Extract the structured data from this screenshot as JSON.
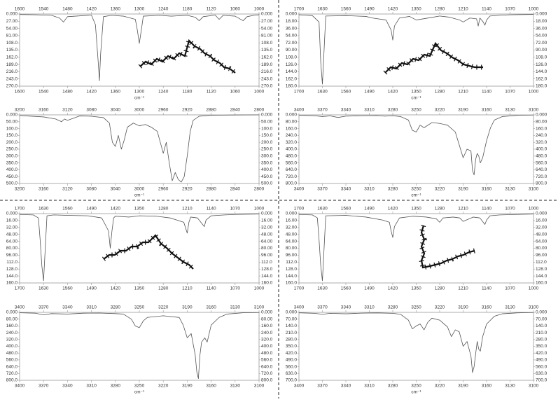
{
  "chart_data": [
    {
      "type": "line",
      "x_label": "cm⁻¹",
      "xlim": [
        1600,
        1000
      ],
      "xticks": [
        1600,
        1540,
        1480,
        1420,
        1360,
        1300,
        1240,
        1180,
        1120,
        1060,
        1000
      ],
      "ylim": [
        270,
        0
      ],
      "yticks": [
        {
          "value": 0,
          "label": "0.000"
        },
        {
          "value": 27,
          "label": "27.00"
        },
        {
          "value": 54,
          "label": "54.00"
        },
        {
          "value": 81,
          "label": "81.00"
        },
        {
          "value": 108,
          "label": "108.0"
        },
        {
          "value": 135,
          "label": "135.0"
        },
        {
          "value": 162,
          "label": "162.0"
        },
        {
          "value": 189,
          "label": "189.0"
        },
        {
          "value": 216,
          "label": "216.0"
        },
        {
          "value": 243,
          "label": "243.0"
        },
        {
          "value": 270,
          "label": "270.0"
        }
      ],
      "color": "#555555",
      "x": [
        1600,
        1560,
        1520,
        1500,
        1490,
        1480,
        1420,
        1410,
        1403,
        1400,
        1397,
        1390,
        1370,
        1340,
        1310,
        1305,
        1300,
        1295,
        1290,
        1250,
        1220,
        1180,
        1160,
        1150,
        1140,
        1110,
        1100,
        1090,
        1060,
        1040,
        1030,
        1010,
        1000
      ],
      "values": [
        2,
        3,
        5,
        15,
        30,
        10,
        4,
        40,
        180,
        250,
        150,
        10,
        5,
        8,
        20,
        60,
        110,
        60,
        8,
        5,
        8,
        5,
        12,
        25,
        10,
        4,
        20,
        5,
        8,
        25,
        10,
        4,
        3
      ]
    },
    {
      "type": "line",
      "x_label": "cm⁻¹",
      "xlim": [
        3200,
        2800
      ],
      "xticks": [
        3200,
        3160,
        3120,
        3080,
        3040,
        3000,
        2960,
        2920,
        2880,
        2840,
        2800
      ],
      "ylim": [
        500,
        0
      ],
      "yticks": [
        {
          "value": 0,
          "label": "0.000"
        },
        {
          "value": 50,
          "label": "50.00"
        },
        {
          "value": 100,
          "label": "100.0"
        },
        {
          "value": 150,
          "label": "150.0"
        },
        {
          "value": 200,
          "label": "200.0"
        },
        {
          "value": 250,
          "label": "250.0"
        },
        {
          "value": 300,
          "label": "300.0"
        },
        {
          "value": 350,
          "label": "350.0"
        },
        {
          "value": 400,
          "label": "400.0"
        },
        {
          "value": 450,
          "label": "450.0"
        },
        {
          "value": 500,
          "label": "500.0"
        }
      ],
      "color": "#555555",
      "x": [
        3200,
        3180,
        3160,
        3140,
        3130,
        3125,
        3120,
        3100,
        3080,
        3060,
        3050,
        3045,
        3040,
        3035,
        3030,
        3025,
        3020,
        3010,
        3000,
        2990,
        2980,
        2970,
        2965,
        2960,
        2955,
        2950,
        2945,
        2940,
        2935,
        2930,
        2925,
        2920,
        2915,
        2910,
        2900,
        2880,
        2860,
        2840,
        2800
      ],
      "values": [
        5,
        10,
        15,
        30,
        50,
        30,
        40,
        8,
        10,
        20,
        60,
        200,
        230,
        150,
        250,
        180,
        90,
        60,
        80,
        70,
        90,
        120,
        200,
        280,
        200,
        350,
        480,
        420,
        470,
        490,
        450,
        300,
        120,
        40,
        10,
        3,
        2,
        1,
        0
      ]
    },
    {
      "type": "line",
      "x_label": "cm⁻¹",
      "xlim": [
        1700,
        1000
      ],
      "xticks": [
        1700,
        1630,
        1560,
        1490,
        1420,
        1350,
        1280,
        1210,
        1140,
        1070,
        1000
      ],
      "ylim": [
        180,
        0
      ],
      "yticks": [
        {
          "value": 0,
          "label": "0.000"
        },
        {
          "value": 18,
          "label": "18.00"
        },
        {
          "value": 36,
          "label": "36.00"
        },
        {
          "value": 54,
          "label": "54.00"
        },
        {
          "value": 72,
          "label": "72.00"
        },
        {
          "value": 90,
          "label": "90.00"
        },
        {
          "value": 108,
          "label": "108.0"
        },
        {
          "value": 126,
          "label": "126.0"
        },
        {
          "value": 144,
          "label": "144.0"
        },
        {
          "value": 162,
          "label": "162.0"
        },
        {
          "value": 180,
          "label": "180.0"
        }
      ],
      "color": "#555555",
      "x": [
        1700,
        1660,
        1640,
        1635,
        1630,
        1625,
        1620,
        1560,
        1500,
        1480,
        1440,
        1425,
        1420,
        1415,
        1400,
        1370,
        1350,
        1300,
        1280,
        1250,
        1220,
        1210,
        1190,
        1170,
        1165,
        1160,
        1150,
        1145,
        1140,
        1130,
        1100,
        1070,
        1000
      ],
      "values": [
        2,
        4,
        20,
        120,
        175,
        90,
        5,
        4,
        6,
        10,
        15,
        40,
        65,
        30,
        10,
        6,
        15,
        8,
        5,
        8,
        15,
        20,
        10,
        12,
        30,
        10,
        20,
        28,
        15,
        5,
        3,
        2,
        1
      ]
    },
    {
      "type": "line",
      "x_label": "cm⁻¹",
      "xlim": [
        3400,
        3100
      ],
      "xticks": [
        3400,
        3370,
        3340,
        3310,
        3280,
        3250,
        3220,
        3190,
        3160,
        3130,
        3100
      ],
      "ylim": [
        800,
        0
      ],
      "yticks": [
        {
          "value": 0,
          "label": "0.000"
        },
        {
          "value": 80,
          "label": "80.00"
        },
        {
          "value": 160,
          "label": "160.0"
        },
        {
          "value": 240,
          "label": "240.0"
        },
        {
          "value": 320,
          "label": "320.0"
        },
        {
          "value": 400,
          "label": "400.0"
        },
        {
          "value": 480,
          "label": "480.0"
        },
        {
          "value": 560,
          "label": "560.0"
        },
        {
          "value": 640,
          "label": "640.0"
        },
        {
          "value": 720,
          "label": "720.0"
        },
        {
          "value": 800,
          "label": "800.0"
        }
      ],
      "color": "#555555",
      "x": [
        3400,
        3380,
        3370,
        3360,
        3350,
        3340,
        3320,
        3300,
        3290,
        3280,
        3270,
        3260,
        3255,
        3250,
        3245,
        3240,
        3230,
        3220,
        3210,
        3200,
        3195,
        3190,
        3185,
        3180,
        3178,
        3176,
        3174,
        3172,
        3170,
        3168,
        3165,
        3160,
        3155,
        3150,
        3140,
        3120,
        3100
      ],
      "values": [
        5,
        10,
        20,
        12,
        30,
        15,
        10,
        8,
        15,
        10,
        20,
        60,
        180,
        200,
        120,
        150,
        90,
        100,
        120,
        200,
        350,
        500,
        400,
        420,
        650,
        700,
        520,
        450,
        480,
        560,
        500,
        300,
        150,
        60,
        20,
        5,
        2
      ]
    },
    {
      "type": "line",
      "xlim": [
        1700,
        1000
      ],
      "xticks": [
        1700,
        1630,
        1560,
        1490,
        1420,
        1350,
        1280,
        1210,
        1140,
        1070,
        1000
      ],
      "ylim": [
        160,
        0
      ],
      "yticks": [
        {
          "value": 0,
          "label": "0.000"
        },
        {
          "value": 16,
          "label": "16.00"
        },
        {
          "value": 32,
          "label": "32.00"
        },
        {
          "value": 48,
          "label": "48.00"
        },
        {
          "value": 64,
          "label": "64.00"
        },
        {
          "value": 80,
          "label": "80.00"
        },
        {
          "value": 96,
          "label": "96.00"
        },
        {
          "value": 112,
          "label": "112.0"
        },
        {
          "value": 128,
          "label": "128.0"
        },
        {
          "value": 144,
          "label": "144.0"
        },
        {
          "value": 160,
          "label": "160.0"
        }
      ],
      "color": "#555555",
      "x": [
        1700,
        1660,
        1645,
        1640,
        1635,
        1630,
        1625,
        1620,
        1600,
        1560,
        1500,
        1460,
        1440,
        1435,
        1430,
        1425,
        1420,
        1380,
        1350,
        1300,
        1260,
        1240,
        1220,
        1210,
        1205,
        1200,
        1180,
        1165,
        1160,
        1155,
        1140,
        1100,
        1070,
        1000
      ],
      "values": [
        2,
        3,
        10,
        60,
        120,
        155,
        80,
        5,
        3,
        4,
        5,
        10,
        40,
        80,
        40,
        10,
        6,
        8,
        5,
        6,
        10,
        15,
        20,
        45,
        20,
        8,
        10,
        25,
        30,
        15,
        5,
        3,
        2,
        1
      ]
    },
    {
      "type": "line",
      "x_label": "cm⁻¹",
      "xlim": [
        3400,
        3100
      ],
      "xticks": [
        3400,
        3370,
        3340,
        3310,
        3280,
        3250,
        3220,
        3190,
        3160,
        3130,
        3100
      ],
      "ylim": [
        800,
        0
      ],
      "yticks": [
        {
          "value": 0,
          "label": "0.000"
        },
        {
          "value": 80,
          "label": "80.00"
        },
        {
          "value": 160,
          "label": "160.0"
        },
        {
          "value": 240,
          "label": "240.0"
        },
        {
          "value": 320,
          "label": "320.0"
        },
        {
          "value": 400,
          "label": "400.0"
        },
        {
          "value": 480,
          "label": "480.0"
        },
        {
          "value": 560,
          "label": "560.0"
        },
        {
          "value": 640,
          "label": "640.0"
        },
        {
          "value": 720,
          "label": "720.0"
        },
        {
          "value": 800,
          "label": "800.0"
        }
      ],
      "color": "#555555",
      "x": [
        3400,
        3380,
        3370,
        3360,
        3340,
        3320,
        3300,
        3280,
        3270,
        3260,
        3255,
        3250,
        3245,
        3240,
        3220,
        3200,
        3195,
        3190,
        3185,
        3180,
        3178,
        3176,
        3174,
        3172,
        3168,
        3165,
        3160,
        3150,
        3140,
        3120,
        3100
      ],
      "values": [
        5,
        10,
        30,
        15,
        20,
        10,
        8,
        15,
        20,
        80,
        160,
        180,
        100,
        60,
        40,
        60,
        150,
        300,
        250,
        500,
        700,
        780,
        500,
        350,
        300,
        350,
        150,
        60,
        20,
        5,
        2
      ]
    },
    {
      "type": "line",
      "xlim": [
        1700,
        1000
      ],
      "xticks": [
        1700,
        1630,
        1560,
        1490,
        1420,
        1350,
        1280,
        1210,
        1140,
        1070,
        1000
      ],
      "ylim": [
        160,
        0
      ],
      "yticks": [
        {
          "value": 0,
          "label": "0.000"
        },
        {
          "value": 16,
          "label": "16.00"
        },
        {
          "value": 32,
          "label": "32.00"
        },
        {
          "value": 48,
          "label": "48.00"
        },
        {
          "value": 64,
          "label": "64.00"
        },
        {
          "value": 80,
          "label": "80.00"
        },
        {
          "value": 96,
          "label": "96.00"
        },
        {
          "value": 112,
          "label": "112.0"
        },
        {
          "value": 128,
          "label": "128.0"
        },
        {
          "value": 144,
          "label": "144.0"
        },
        {
          "value": 160,
          "label": "160.0"
        }
      ],
      "color": "#555555",
      "x": [
        1700,
        1660,
        1645,
        1640,
        1635,
        1630,
        1625,
        1620,
        1560,
        1500,
        1450,
        1430,
        1425,
        1420,
        1415,
        1400,
        1360,
        1320,
        1290,
        1280,
        1270,
        1240,
        1220,
        1210,
        1180,
        1160,
        1150,
        1145,
        1140,
        1130,
        1100,
        1000
      ],
      "values": [
        2,
        3,
        10,
        60,
        120,
        155,
        80,
        5,
        4,
        8,
        15,
        20,
        40,
        55,
        30,
        10,
        6,
        8,
        12,
        20,
        10,
        8,
        10,
        18,
        8,
        10,
        20,
        25,
        15,
        5,
        3,
        1
      ]
    },
    {
      "type": "line",
      "x_label": "cm⁻¹",
      "xlim": [
        3400,
        3100
      ],
      "xticks": [
        3400,
        3370,
        3340,
        3310,
        3280,
        3250,
        3220,
        3190,
        3160,
        3130,
        3100
      ],
      "ylim": [
        700,
        0
      ],
      "yticks": [
        {
          "value": 0,
          "label": "0.000"
        },
        {
          "value": 70,
          "label": "70.00"
        },
        {
          "value": 140,
          "label": "140.0"
        },
        {
          "value": 210,
          "label": "210.0"
        },
        {
          "value": 280,
          "label": "280.0"
        },
        {
          "value": 350,
          "label": "350.0"
        },
        {
          "value": 420,
          "label": "420.0"
        },
        {
          "value": 490,
          "label": "490.0"
        },
        {
          "value": 560,
          "label": "560.0"
        },
        {
          "value": 630,
          "label": "630.0"
        },
        {
          "value": 700,
          "label": "700.0"
        }
      ],
      "color": "#555555",
      "x": [
        3400,
        3380,
        3370,
        3360,
        3340,
        3320,
        3300,
        3280,
        3270,
        3260,
        3255,
        3250,
        3245,
        3240,
        3235,
        3230,
        3220,
        3210,
        3205,
        3200,
        3195,
        3190,
        3185,
        3180,
        3178,
        3176,
        3172,
        3170,
        3168,
        3165,
        3160,
        3150,
        3140,
        3120,
        3100
      ],
      "values": [
        5,
        10,
        20,
        10,
        15,
        8,
        6,
        10,
        20,
        80,
        170,
        140,
        120,
        180,
        100,
        60,
        80,
        150,
        250,
        180,
        200,
        350,
        300,
        450,
        620,
        560,
        300,
        380,
        400,
        250,
        120,
        40,
        15,
        5,
        2
      ]
    }
  ]
}
